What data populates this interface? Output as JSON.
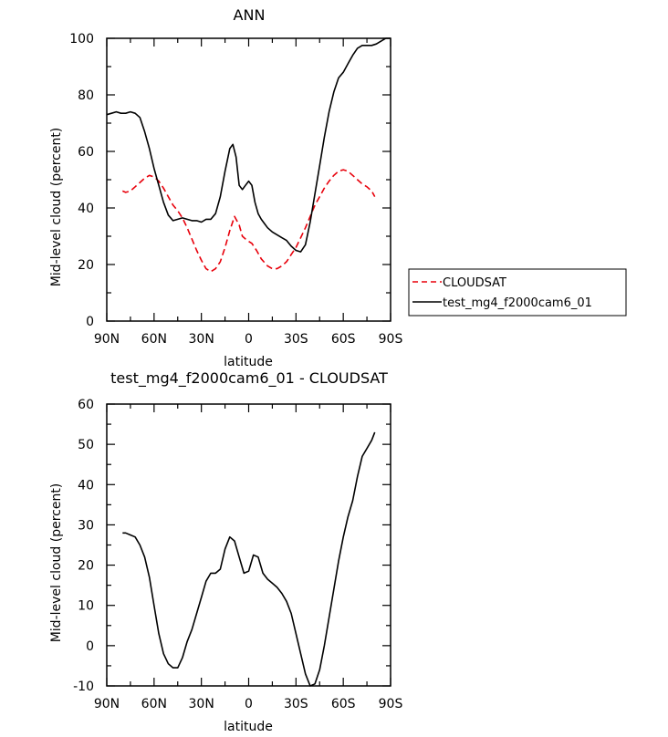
{
  "chart_data": [
    {
      "type": "line",
      "title": "ANN",
      "xlabel": "latitude",
      "ylabel": "Mid-level cloud (percent)",
      "xlim": [
        90,
        -90
      ],
      "ylim": [
        0,
        100
      ],
      "xticks": [
        90,
        60,
        30,
        0,
        -30,
        -60,
        -90
      ],
      "xtick_labels": [
        "90N",
        "60N",
        "30N",
        "0",
        "30S",
        "60S",
        "90S"
      ],
      "yticks": [
        0,
        20,
        40,
        60,
        80,
        100
      ],
      "ytick_labels": [
        "0",
        "20",
        "40",
        "60",
        "80",
        "100"
      ],
      "grid": false,
      "legend_position": "right",
      "series": [
        {
          "name": "CLOUDSAT",
          "color": "#e8000b",
          "dash": "dashed",
          "x": [
            80,
            78,
            75,
            72,
            69,
            66,
            63,
            60,
            57,
            54,
            51,
            48,
            45,
            42,
            39,
            36,
            33,
            30,
            27,
            24,
            21,
            18,
            15,
            12,
            9,
            6,
            4,
            1,
            -2,
            -5,
            -8,
            -12,
            -15,
            -18,
            -21,
            -24,
            -27,
            -30,
            -33,
            -36,
            -39,
            -42,
            -45,
            -48,
            -51,
            -54,
            -57,
            -60,
            -63,
            -66,
            -69,
            -72,
            -75,
            -78,
            -80
          ],
          "y": [
            46,
            45.5,
            46,
            47.5,
            49,
            50.5,
            51.5,
            51,
            49.5,
            47,
            44,
            41,
            39,
            36.5,
            33,
            29,
            25,
            21.5,
            18.5,
            17.5,
            18.5,
            21,
            26,
            32,
            37,
            34,
            30,
            28.5,
            27.5,
            25,
            22,
            19.5,
            18.5,
            18.5,
            19.5,
            21,
            23.5,
            26,
            29.5,
            33,
            37,
            41,
            44,
            47,
            49.5,
            51.5,
            53,
            53.5,
            53,
            51.5,
            50,
            48.5,
            47.5,
            46,
            44
          ]
        },
        {
          "name": "test_mg4_f2000cam6_01",
          "color": "#000000",
          "dash": "solid",
          "x": [
            90,
            87,
            84,
            81,
            78,
            75,
            72,
            69,
            66,
            63,
            60,
            57,
            54,
            51,
            48,
            45,
            42,
            39,
            36,
            33,
            30,
            27,
            24,
            21,
            18,
            15,
            12,
            10,
            8,
            6,
            4,
            2,
            0,
            -2,
            -4,
            -6,
            -8,
            -10,
            -12,
            -15,
            -18,
            -21,
            -24,
            -27,
            -30,
            -33,
            -36,
            -39,
            -42,
            -45,
            -48,
            -51,
            -54,
            -57,
            -60,
            -63,
            -66,
            -69,
            -72,
            -75,
            -78,
            -81,
            -84,
            -87,
            -90
          ],
          "y": [
            73,
            73.5,
            74,
            73.5,
            73.5,
            74,
            73.5,
            72,
            67,
            61,
            54,
            48,
            42,
            37.5,
            35.5,
            36,
            36.5,
            36,
            35.5,
            35.5,
            35,
            36,
            36,
            38,
            44,
            53,
            61,
            62.5,
            58,
            48,
            46.5,
            48,
            49.5,
            48,
            42,
            38,
            36,
            34.5,
            33,
            31.5,
            30.5,
            29.5,
            28.5,
            26.5,
            25,
            24.5,
            27,
            35,
            45,
            55,
            65,
            74,
            81,
            86,
            88,
            91,
            94,
            96.5,
            97.5,
            97.5,
            97.5,
            98,
            99,
            100,
            100
          ]
        }
      ]
    },
    {
      "type": "line",
      "title": "test_mg4_f2000cam6_01 - CLOUDSAT",
      "xlabel": "latitude",
      "ylabel": "Mid-level cloud (percent)",
      "xlim": [
        90,
        -90
      ],
      "ylim": [
        -10,
        60
      ],
      "xticks": [
        90,
        60,
        30,
        0,
        -30,
        -60,
        -90
      ],
      "xtick_labels": [
        "90N",
        "60N",
        "30N",
        "0",
        "30S",
        "60S",
        "90S"
      ],
      "yticks": [
        -10,
        0,
        10,
        20,
        30,
        40,
        50,
        60
      ],
      "ytick_labels": [
        "-10",
        "0",
        "10",
        "20",
        "30",
        "40",
        "50",
        "60"
      ],
      "grid": false,
      "series": [
        {
          "color": "#000000",
          "dash": "solid",
          "x": [
            80,
            78,
            75,
            72,
            69,
            66,
            63,
            60,
            57,
            54,
            51,
            48,
            45,
            42,
            39,
            36,
            33,
            30,
            27,
            24,
            21,
            18,
            15,
            12,
            9,
            6,
            3,
            0,
            -3,
            -6,
            -9,
            -12,
            -15,
            -18,
            -21,
            -24,
            -27,
            -30,
            -33,
            -36,
            -39,
            -42,
            -45,
            -48,
            -51,
            -54,
            -57,
            -60,
            -63,
            -66,
            -69,
            -72,
            -75,
            -78,
            -80
          ],
          "y": [
            28,
            28,
            27.5,
            27,
            25,
            22,
            17,
            10,
            3,
            -2,
            -4.5,
            -5.5,
            -5.5,
            -3,
            1,
            4,
            8,
            12,
            16,
            18,
            18,
            19,
            24,
            27,
            26,
            22,
            18,
            18.5,
            22.5,
            22,
            18,
            16.5,
            15.5,
            14.5,
            13,
            11,
            8,
            3,
            -2,
            -7,
            -10,
            -9.5,
            -6,
            0,
            7,
            14,
            21,
            27,
            32,
            36,
            42,
            47,
            49,
            51,
            53
          ]
        }
      ]
    }
  ]
}
